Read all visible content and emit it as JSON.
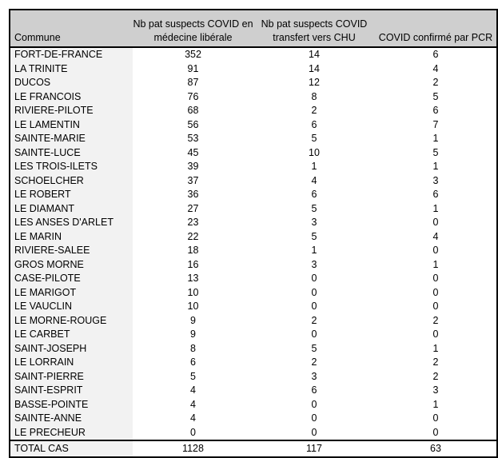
{
  "table": {
    "headers": [
      "Commune",
      "Nb pat suspects COVID en médecine libérale",
      "Nb pat suspects COVID transfert vers CHU",
      "COVID confirmé par PCR"
    ],
    "rows": [
      [
        "FORT-DE-FRANCE",
        "352",
        "14",
        "6"
      ],
      [
        "LA TRINITE",
        "91",
        "14",
        "4"
      ],
      [
        "DUCOS",
        "87",
        "12",
        "2"
      ],
      [
        "LE FRANCOIS",
        "76",
        "8",
        "5"
      ],
      [
        "RIVIERE-PILOTE",
        "68",
        "2",
        "6"
      ],
      [
        "LE LAMENTIN",
        "56",
        "6",
        "7"
      ],
      [
        "SAINTE-MARIE",
        "53",
        "5",
        "1"
      ],
      [
        "SAINTE-LUCE",
        "45",
        "10",
        "5"
      ],
      [
        "LES TROIS-ILETS",
        "39",
        "1",
        "1"
      ],
      [
        "SCHOELCHER",
        "37",
        "4",
        "3"
      ],
      [
        "LE ROBERT",
        "36",
        "6",
        "6"
      ],
      [
        "LE DIAMANT",
        "27",
        "5",
        "1"
      ],
      [
        "LES ANSES D'ARLET",
        "23",
        "3",
        "0"
      ],
      [
        "LE MARIN",
        "22",
        "5",
        "4"
      ],
      [
        "RIVIERE-SALEE",
        "18",
        "1",
        "0"
      ],
      [
        "GROS MORNE",
        "16",
        "3",
        "1"
      ],
      [
        "CASE-PILOTE",
        "13",
        "0",
        "0"
      ],
      [
        "LE MARIGOT",
        "10",
        "0",
        "0"
      ],
      [
        "LE VAUCLIN",
        "10",
        "0",
        "0"
      ],
      [
        "LE MORNE-ROUGE",
        "9",
        "2",
        "2"
      ],
      [
        "LE CARBET",
        "9",
        "0",
        "0"
      ],
      [
        "SAINT-JOSEPH",
        "8",
        "5",
        "1"
      ],
      [
        "LE LORRAIN",
        "6",
        "2",
        "2"
      ],
      [
        "SAINT-PIERRE",
        "5",
        "3",
        "2"
      ],
      [
        "SAINT-ESPRIT",
        "4",
        "6",
        "3"
      ],
      [
        "BASSE-POINTE",
        "4",
        "0",
        "1"
      ],
      [
        "SAINTE-ANNE",
        "4",
        "0",
        "0"
      ],
      [
        "LE PRECHEUR",
        "0",
        "0",
        "0"
      ]
    ],
    "total": [
      "TOTAL CAS",
      "1128",
      "117",
      "63"
    ]
  },
  "colors": {
    "header_bg": "#cfcfcf",
    "first_col_bg": "#f2f2f2"
  }
}
